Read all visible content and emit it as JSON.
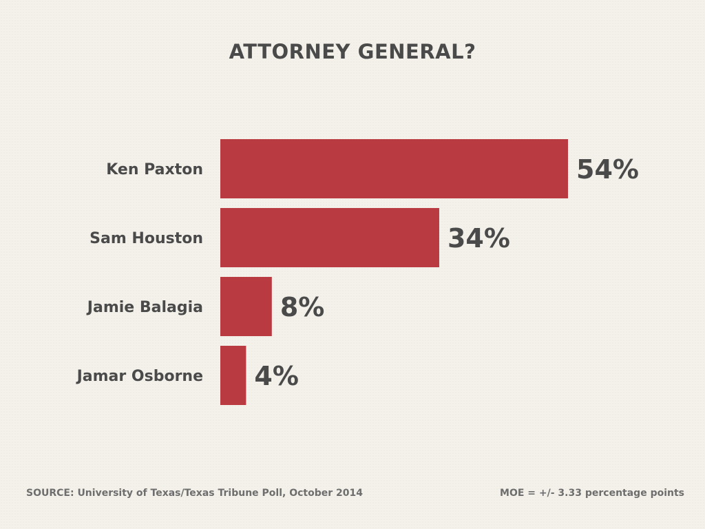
{
  "title": "ATTORNEY GENERAL?",
  "footer": {
    "source": "SOURCE: University of Texas/Texas Tribune Poll, October 2014",
    "moe": "MOE = +/- 3.33 percentage points"
  },
  "colors": {
    "bar": "#b93a41",
    "text": "#4a4a4a",
    "background": "#f4f1ea"
  },
  "chart_data": {
    "type": "bar",
    "orientation": "horizontal",
    "categories": [
      "Ken Paxton",
      "Sam Houston",
      "Jamie Balagia",
      "Jamar Osborne"
    ],
    "values": [
      54,
      34,
      8,
      4
    ],
    "value_labels": [
      "54%",
      "34%",
      "8%",
      "4%"
    ],
    "title": "ATTORNEY GENERAL?",
    "xlim": [
      0,
      100
    ],
    "grid": false,
    "legend": "none"
  }
}
